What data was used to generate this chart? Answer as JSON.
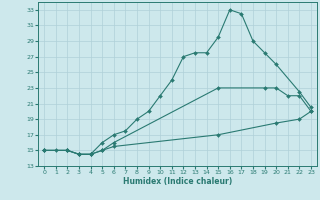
{
  "xlabel": "Humidex (Indice chaleur)",
  "bg_color": "#cde8ec",
  "grid_color": "#b0d0d8",
  "line_color": "#2a7a72",
  "xlim": [
    -0.5,
    23.5
  ],
  "ylim": [
    13,
    34
  ],
  "xticks": [
    0,
    1,
    2,
    3,
    4,
    5,
    6,
    7,
    8,
    9,
    10,
    11,
    12,
    13,
    14,
    15,
    16,
    17,
    18,
    19,
    20,
    21,
    22,
    23
  ],
  "yticks": [
    13,
    15,
    17,
    19,
    21,
    23,
    25,
    27,
    29,
    31,
    33
  ],
  "line1_x": [
    0,
    1,
    2,
    3,
    4,
    5,
    6,
    7,
    8,
    9,
    10,
    11,
    12,
    13,
    14,
    15,
    16,
    17,
    18,
    19,
    20,
    22,
    23
  ],
  "line1_y": [
    15,
    15,
    15,
    14.5,
    14.5,
    16,
    17,
    17.5,
    19,
    20,
    22,
    24,
    27,
    27.5,
    27.5,
    29.5,
    33,
    32.5,
    29,
    27.5,
    26,
    22.5,
    20.5
  ],
  "line2_x": [
    0,
    2,
    3,
    4,
    5,
    6,
    15,
    19,
    20,
    21,
    22,
    23
  ],
  "line2_y": [
    15,
    15,
    14.5,
    14.5,
    15,
    16,
    23,
    23,
    23,
    22,
    22,
    20
  ],
  "line3_x": [
    0,
    2,
    3,
    4,
    5,
    6,
    15,
    20,
    22,
    23
  ],
  "line3_y": [
    15,
    15,
    14.5,
    14.5,
    15,
    15.5,
    17,
    18.5,
    19,
    20
  ]
}
